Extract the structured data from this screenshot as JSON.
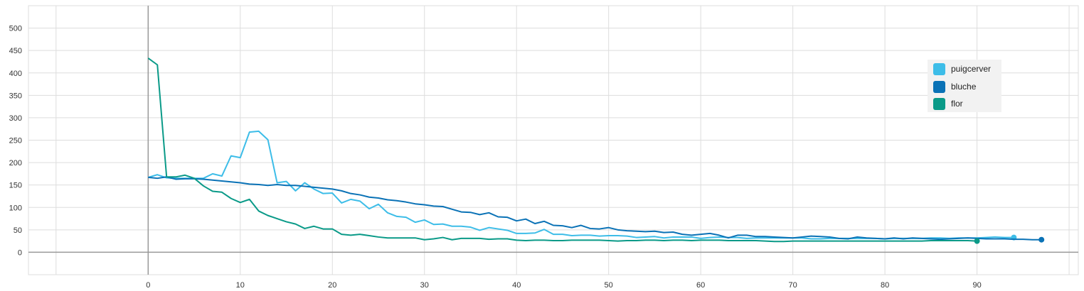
{
  "chart_data": {
    "type": "line",
    "xlim": [
      -13,
      101
    ],
    "ylim": [
      -50,
      550
    ],
    "x_ticks": [
      0,
      10,
      20,
      30,
      40,
      50,
      60,
      70,
      80,
      90
    ],
    "x_tick_labels": [
      "0",
      "10",
      "20",
      "30",
      "40",
      "50",
      "60",
      "70",
      "80",
      "90"
    ],
    "y_ticks": [
      0,
      50,
      100,
      150,
      200,
      250,
      300,
      350,
      400,
      450,
      500
    ],
    "y_tick_labels": [
      "0",
      "50",
      "100",
      "150",
      "200",
      "250",
      "300",
      "350",
      "400",
      "450",
      "500"
    ],
    "grid": true,
    "legend_position": "right",
    "series": [
      {
        "name": "puigcerver",
        "color": "#3dbde8",
        "values": [
          167,
          173,
          166,
          165,
          165,
          165,
          165,
          175,
          170,
          215,
          211,
          268,
          270,
          251,
          155,
          158,
          137,
          155,
          141,
          131,
          132,
          110,
          118,
          114,
          97,
          107,
          88,
          80,
          78,
          67,
          72,
          62,
          63,
          58,
          58,
          56,
          49,
          55,
          52,
          49,
          42,
          42,
          43,
          51,
          40,
          40,
          37,
          38,
          38,
          36,
          37,
          37,
          36,
          33,
          34,
          35,
          32,
          34,
          34,
          34,
          31,
          33,
          34,
          33,
          33,
          31,
          32,
          32,
          32,
          32,
          32,
          32,
          30,
          30,
          31,
          31,
          31,
          31,
          31,
          31,
          30,
          31,
          31,
          31,
          31,
          32,
          32,
          31,
          32,
          32,
          32,
          33,
          34,
          33,
          33
        ]
      },
      {
        "name": "bluche",
        "color": "#0a72b6",
        "values": [
          167,
          165,
          168,
          163,
          164,
          164,
          163,
          161,
          159,
          157,
          155,
          152,
          151,
          149,
          151,
          149,
          149,
          147,
          145,
          143,
          141,
          137,
          131,
          128,
          123,
          121,
          117,
          115,
          112,
          108,
          106,
          103,
          102,
          96,
          90,
          89,
          84,
          88,
          79,
          78,
          70,
          74,
          64,
          69,
          60,
          59,
          55,
          60,
          53,
          52,
          55,
          50,
          48,
          47,
          46,
          47,
          44,
          45,
          40,
          38,
          40,
          42,
          38,
          32,
          38,
          38,
          35,
          35,
          34,
          33,
          32,
          34,
          36,
          35,
          34,
          31,
          30,
          34,
          32,
          31,
          30,
          32,
          30,
          32,
          31,
          30,
          29,
          30,
          31,
          32,
          31,
          30,
          30,
          30,
          29,
          29,
          28,
          28
        ]
      },
      {
        "name": "flor",
        "color": "#0a9a88",
        "values": [
          433,
          418,
          168,
          168,
          172,
          165,
          148,
          136,
          134,
          120,
          111,
          118,
          92,
          82,
          75,
          68,
          63,
          53,
          58,
          52,
          52,
          40,
          38,
          40,
          37,
          34,
          32,
          32,
          32,
          32,
          28,
          30,
          33,
          28,
          31,
          31,
          31,
          29,
          30,
          30,
          27,
          26,
          27,
          27,
          26,
          26,
          27,
          27,
          27,
          27,
          26,
          25,
          26,
          26,
          27,
          27,
          26,
          27,
          27,
          26,
          27,
          27,
          27,
          26,
          26,
          26,
          26,
          25,
          24,
          24,
          25,
          25,
          25,
          25,
          25,
          25,
          25,
          25,
          25,
          25,
          25,
          25,
          25,
          25,
          25,
          26,
          26,
          26,
          26,
          26,
          25
        ]
      }
    ]
  },
  "legend": {
    "items": [
      {
        "label": "puigcerver",
        "color": "#3dbde8"
      },
      {
        "label": "bluche",
        "color": "#0a72b6"
      },
      {
        "label": "flor",
        "color": "#0a9a88"
      }
    ]
  }
}
